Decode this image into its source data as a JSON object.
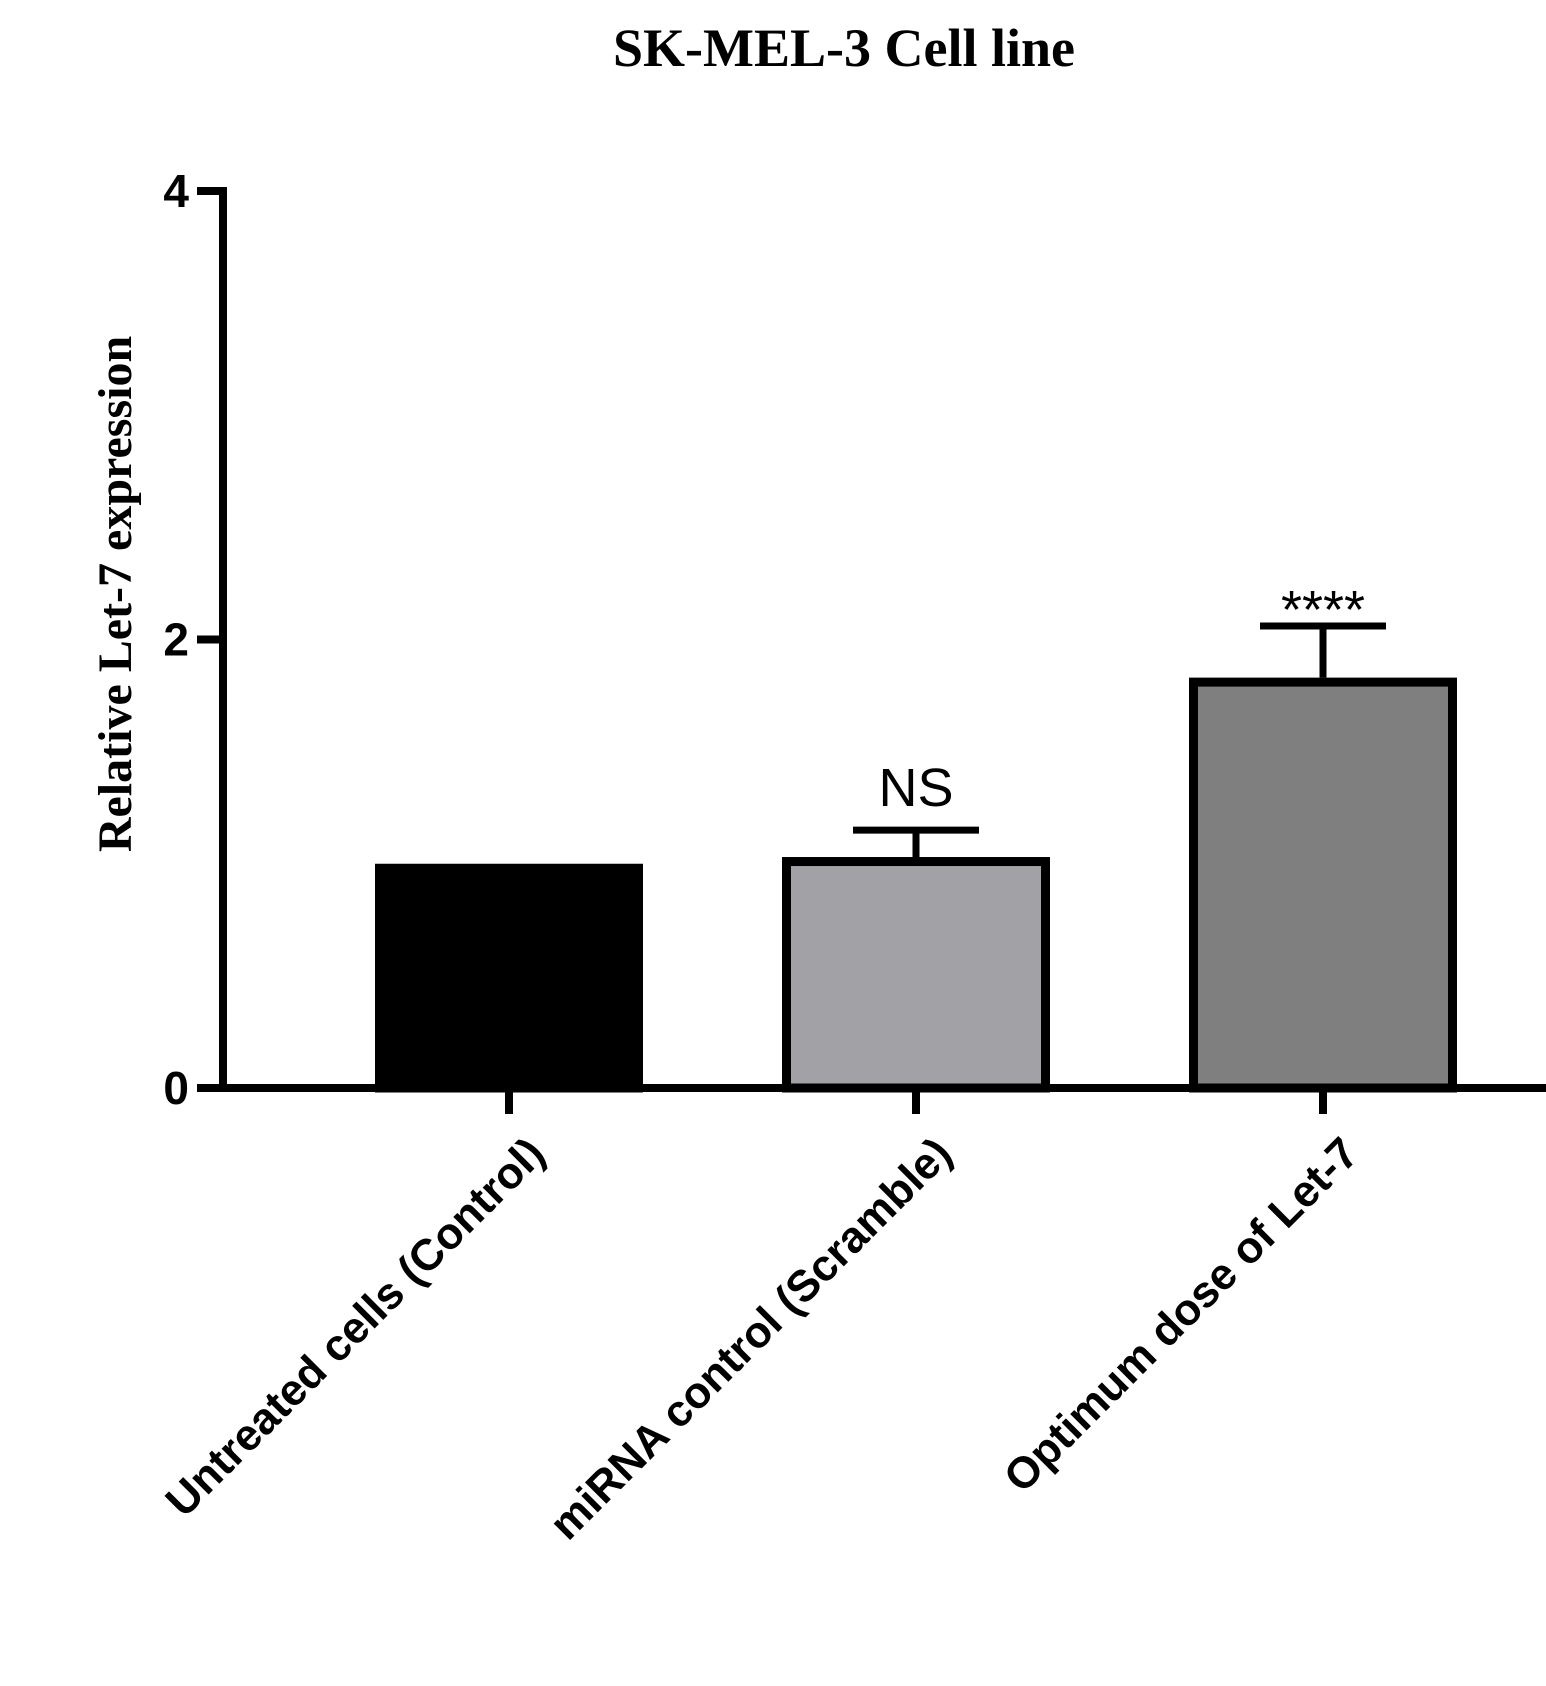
{
  "chart_data": {
    "type": "bar",
    "title": "SK-MEL-3  Cell line",
    "xlabel": "",
    "ylabel": "Relative Let-7 expression",
    "ylim": [
      0,
      4
    ],
    "yticks": [
      0,
      2,
      4
    ],
    "categories": [
      "Untreated cells (Control)",
      "miRNA control (Scramble)",
      "Optimum dose of Let-7"
    ],
    "values": [
      1.0,
      1.03,
      1.83
    ],
    "errors": [
      0,
      0.12,
      0.23
    ],
    "annotations": [
      "",
      "NS",
      "****"
    ],
    "colors": [
      "#000000",
      "#a2a1a5",
      "#7f7f7f"
    ],
    "axis_color": "#000000"
  }
}
